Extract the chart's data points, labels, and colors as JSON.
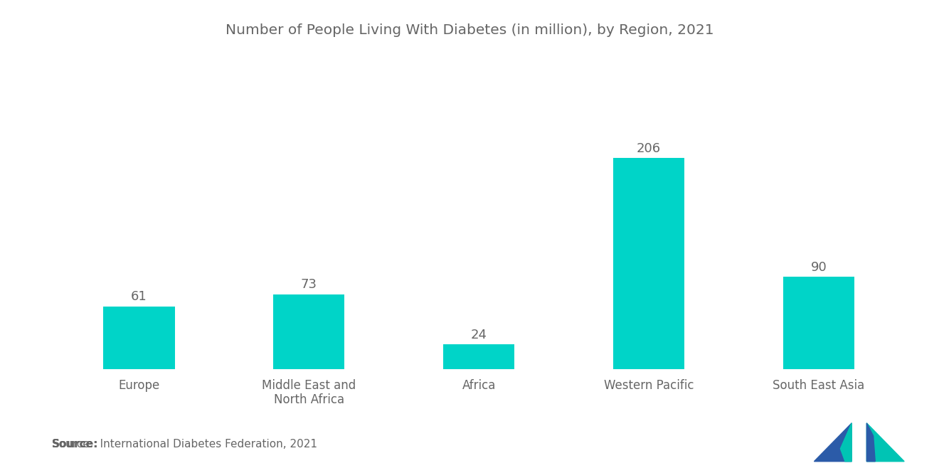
{
  "title": "Number of People Living With Diabetes (in million), by Region, 2021",
  "categories": [
    "Europe",
    "Middle East and\nNorth Africa",
    "Africa",
    "Western Pacific",
    "South East Asia"
  ],
  "values": [
    61,
    73,
    24,
    206,
    90
  ],
  "bar_color": "#00D4C8",
  "value_labels": [
    "61",
    "73",
    "24",
    "206",
    "90"
  ],
  "background_color": "#ffffff",
  "title_color": "#666666",
  "label_color": "#666666",
  "value_color": "#666666",
  "source_bold": "Source:",
  "source_rest": "  International Diabetes Federation, 2021",
  "title_fontsize": 14.5,
  "label_fontsize": 12,
  "value_fontsize": 13,
  "source_fontsize": 11,
  "ylim": [
    0,
    240
  ],
  "bar_width": 0.42,
  "logo_color_left": "#2B5BA8",
  "logo_color_right": "#00C4B4",
  "logo_color_accent": "#4A9FD4"
}
